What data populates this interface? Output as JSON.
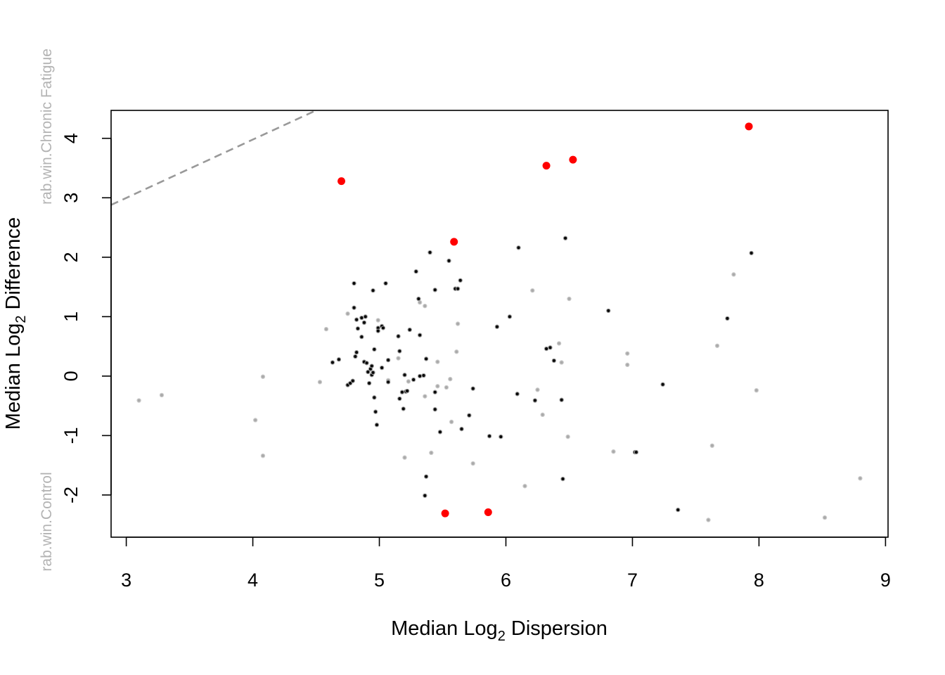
{
  "chart_data": {
    "type": "scatter",
    "xlabel": {
      "pre": "Median  Log",
      "sub": "2",
      "post": "  Dispersion"
    },
    "ylabel": {
      "pre": "Median  Log",
      "sub": "2",
      "post": "  Difference"
    },
    "group_labels": {
      "top": "rab.win.Chronic Fatigue",
      "bottom": "rab.win.Control"
    },
    "xlim": [
      2.88,
      9.02
    ],
    "ylim": [
      -2.71,
      4.47
    ],
    "x_ticks": [
      3,
      4,
      5,
      6,
      7,
      8,
      9
    ],
    "y_ticks": [
      -2,
      -1,
      0,
      1,
      2,
      3,
      4
    ],
    "colors": {
      "significant": "#ff0000",
      "nonsig": "#000000",
      "low_abundance": "#aaaaaa",
      "effect_line": "#999999"
    },
    "effect_line": {
      "style": "dashed",
      "x": [
        2.88,
        4.5
      ],
      "y": [
        2.88,
        4.47
      ]
    },
    "series": [
      {
        "role": "significant",
        "points": [
          [
            4.7,
            3.28
          ],
          [
            5.59,
            2.26
          ],
          [
            6.32,
            3.54
          ],
          [
            6.53,
            3.64
          ],
          [
            7.92,
            4.2
          ],
          [
            5.52,
            -2.31
          ],
          [
            5.86,
            -2.29
          ]
        ]
      },
      {
        "role": "nonsig",
        "points": [
          [
            4.63,
            0.23
          ],
          [
            4.68,
            0.28
          ],
          [
            4.75,
            -0.15
          ],
          [
            4.77,
            -0.12
          ],
          [
            4.79,
            -0.08
          ],
          [
            4.8,
            1.56
          ],
          [
            4.8,
            1.15
          ],
          [
            4.82,
            0.95
          ],
          [
            4.83,
            0.8
          ],
          [
            4.81,
            0.33
          ],
          [
            4.82,
            0.4
          ],
          [
            4.86,
            0.98
          ],
          [
            4.86,
            0.66
          ],
          [
            4.88,
            0.9
          ],
          [
            4.89,
            1.0
          ],
          [
            4.88,
            0.24
          ],
          [
            4.9,
            0.22
          ],
          [
            4.91,
            0.07
          ],
          [
            4.92,
            -0.12
          ],
          [
            4.93,
            0.12
          ],
          [
            4.94,
            0.02
          ],
          [
            4.95,
            0.06
          ],
          [
            4.94,
            0.17
          ],
          [
            4.96,
            0.45
          ],
          [
            4.95,
            1.44
          ],
          [
            4.96,
            -0.36
          ],
          [
            4.97,
            -0.6
          ],
          [
            4.98,
            -0.82
          ],
          [
            4.99,
            0.81
          ],
          [
            4.99,
            0.76
          ],
          [
            5.02,
            0.84
          ],
          [
            5.03,
            0.81
          ],
          [
            5.02,
            0.14
          ],
          [
            5.05,
            1.56
          ],
          [
            5.07,
            0.27
          ],
          [
            5.07,
            -0.1
          ],
          [
            5.15,
            0.67
          ],
          [
            5.16,
            0.42
          ],
          [
            5.16,
            -0.38
          ],
          [
            5.18,
            -0.27
          ],
          [
            5.19,
            -0.55
          ],
          [
            5.2,
            0.02
          ],
          [
            5.21,
            -0.26
          ],
          [
            5.22,
            -0.25
          ],
          [
            5.24,
            0.78
          ],
          [
            5.27,
            -0.06
          ],
          [
            5.29,
            1.76
          ],
          [
            5.31,
            1.3
          ],
          [
            5.32,
            0.69
          ],
          [
            5.32,
            0.0
          ],
          [
            5.35,
            0.01
          ],
          [
            5.37,
            0.29
          ],
          [
            5.37,
            -1.69
          ],
          [
            5.36,
            -2.01
          ],
          [
            5.4,
            2.08
          ],
          [
            5.44,
            1.45
          ],
          [
            5.44,
            -0.27
          ],
          [
            5.44,
            -0.56
          ],
          [
            5.48,
            -0.94
          ],
          [
            5.55,
            1.94
          ],
          [
            5.6,
            1.47
          ],
          [
            5.62,
            1.47
          ],
          [
            5.64,
            1.61
          ],
          [
            5.65,
            -0.89
          ],
          [
            5.71,
            -0.66
          ],
          [
            5.74,
            -0.21
          ],
          [
            5.87,
            -1.01
          ],
          [
            5.93,
            0.83
          ],
          [
            5.96,
            -1.02
          ],
          [
            6.03,
            1.0
          ],
          [
            6.09,
            -0.3
          ],
          [
            6.1,
            2.16
          ],
          [
            6.23,
            -0.41
          ],
          [
            6.32,
            0.46
          ],
          [
            6.35,
            0.48
          ],
          [
            6.38,
            0.26
          ],
          [
            6.44,
            -0.4
          ],
          [
            6.45,
            -1.73
          ],
          [
            6.47,
            2.32
          ],
          [
            6.81,
            1.1
          ],
          [
            7.02,
            -1.28
          ],
          [
            7.03,
            -1.28
          ],
          [
            7.24,
            -0.14
          ],
          [
            7.36,
            -2.25
          ],
          [
            7.75,
            0.97
          ],
          [
            7.94,
            2.07
          ]
        ]
      },
      {
        "role": "low_abundance",
        "points": [
          [
            3.1,
            -0.41
          ],
          [
            3.28,
            -0.32
          ],
          [
            4.02,
            -0.74
          ],
          [
            4.08,
            -0.01
          ],
          [
            4.08,
            -1.34
          ],
          [
            4.53,
            -0.1
          ],
          [
            4.58,
            0.79
          ],
          [
            4.75,
            1.05
          ],
          [
            4.99,
            0.94
          ],
          [
            5.07,
            -0.07
          ],
          [
            5.15,
            0.3
          ],
          [
            5.2,
            -1.37
          ],
          [
            5.23,
            -0.09
          ],
          [
            5.32,
            1.24
          ],
          [
            5.36,
            1.18
          ],
          [
            5.36,
            -0.34
          ],
          [
            5.41,
            -1.29
          ],
          [
            5.46,
            0.24
          ],
          [
            5.46,
            -0.17
          ],
          [
            5.53,
            -0.19
          ],
          [
            5.56,
            -0.05
          ],
          [
            5.57,
            -0.77
          ],
          [
            5.61,
            0.41
          ],
          [
            5.62,
            0.88
          ],
          [
            5.74,
            -1.47
          ],
          [
            6.15,
            -1.85
          ],
          [
            6.21,
            1.44
          ],
          [
            6.25,
            -0.23
          ],
          [
            6.29,
            -0.65
          ],
          [
            6.42,
            0.55
          ],
          [
            6.44,
            0.23
          ],
          [
            6.49,
            -1.02
          ],
          [
            6.5,
            1.3
          ],
          [
            6.85,
            -1.27
          ],
          [
            6.96,
            0.38
          ],
          [
            6.96,
            0.19
          ],
          [
            7.6,
            -2.42
          ],
          [
            7.63,
            -1.17
          ],
          [
            7.67,
            0.51
          ],
          [
            7.8,
            1.71
          ],
          [
            7.98,
            -0.24
          ],
          [
            8.52,
            -2.38
          ],
          [
            8.8,
            -1.72
          ]
        ]
      }
    ]
  }
}
